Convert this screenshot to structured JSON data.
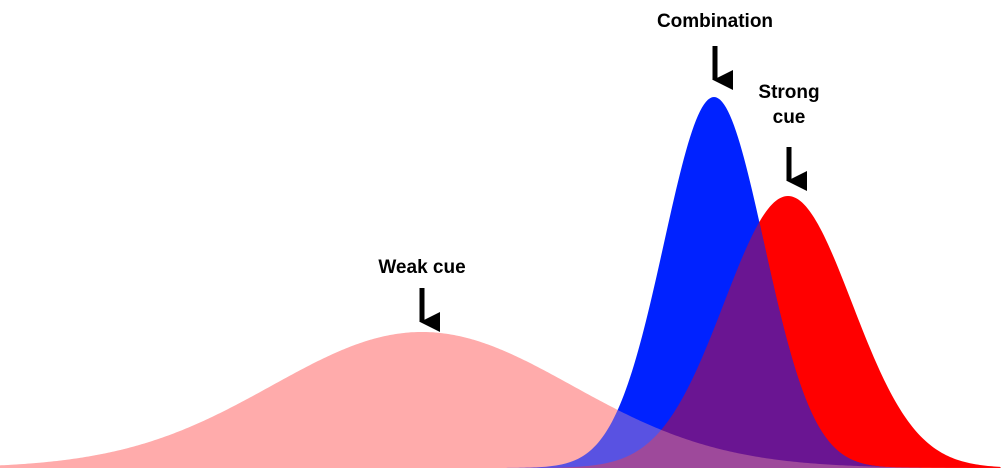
{
  "labels": {
    "combination": "Combination",
    "strong": [
      "Strong",
      "cue"
    ],
    "weak": "Weak cue"
  }
}
